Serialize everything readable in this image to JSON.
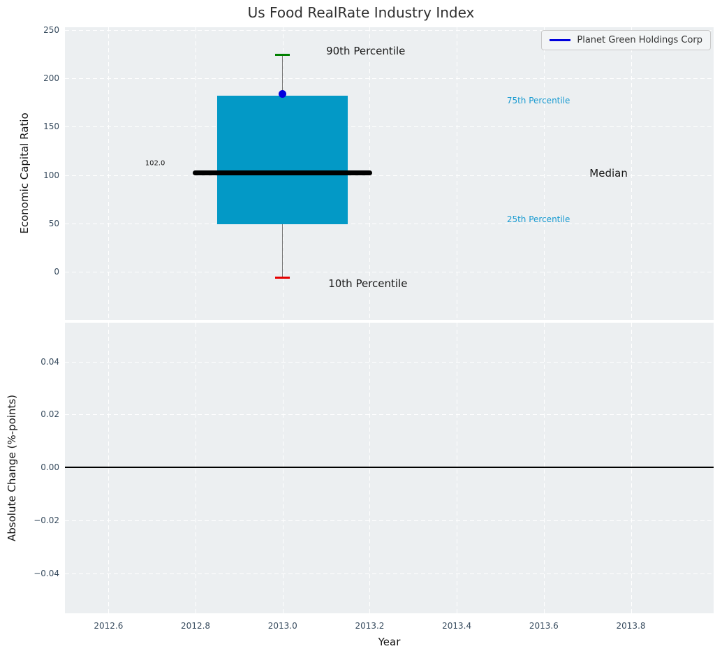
{
  "figure": {
    "plot_background": "#eceff1",
    "grid_color": "#ffffff",
    "tick_label_color": "#374b5e",
    "text_color": "#141414"
  },
  "x_axis": {
    "label": "Year",
    "xlim": [
      2012.5,
      2013.99
    ],
    "ticks": [
      {
        "v": 2012.6,
        "label": "2012.6"
      },
      {
        "v": 2012.8,
        "label": "2012.8"
      },
      {
        "v": 2013.0,
        "label": "2013.0"
      },
      {
        "v": 2013.2,
        "label": "2013.2"
      },
      {
        "v": 2013.4,
        "label": "2013.4"
      },
      {
        "v": 2013.6,
        "label": "2013.6"
      },
      {
        "v": 2013.8,
        "label": "2013.8"
      }
    ]
  },
  "chart_data": [
    {
      "type": "boxplot",
      "title": "Us Food RealRate Industry Index",
      "ylabel": "Economic Capital Ratio",
      "ylim": [
        -49.5,
        252.7
      ],
      "yticks": [
        {
          "v": 250,
          "label": "250"
        },
        {
          "v": 200,
          "label": "200"
        },
        {
          "v": 150,
          "label": "150"
        },
        {
          "v": 100,
          "label": "100"
        },
        {
          "v": 50,
          "label": "50"
        },
        {
          "v": 0,
          "label": "0"
        }
      ],
      "box": {
        "x": 2013.0,
        "p10": -6,
        "p25": 49,
        "median": 102.0,
        "p75": 182,
        "p90": 224,
        "box_half_width": 0.15,
        "median_half_width": 0.206,
        "cap_half_width": 0.017,
        "colors": {
          "box": "#0399c6",
          "median": "#000000",
          "whisker": "#777777",
          "cap_top": "#008000",
          "cap_bottom": "#e60000"
        }
      },
      "median_value_label": "102.0",
      "company_point": {
        "series": "Planet Green Holdings Corp",
        "x": 2013.0,
        "y": 184,
        "color": "#0000dd"
      },
      "annotations": [
        {
          "text": "90th Percentile",
          "x": 2013.1,
          "y": 228,
          "color": "#1a1a1a",
          "size": "large"
        },
        {
          "text": "10th Percentile",
          "x": 2013.105,
          "y": -12,
          "color": "#1a1a1a",
          "size": "large"
        },
        {
          "text": "75th Percentile",
          "x": 2013.515,
          "y": 177,
          "color": "#189ad1",
          "size": "small"
        },
        {
          "text": "25th Percentile",
          "x": 2013.515,
          "y": 54,
          "color": "#189ad1",
          "size": "small"
        },
        {
          "text": "Median",
          "x": 2013.705,
          "y": 102,
          "color": "#1a1a1a",
          "size": "large"
        },
        {
          "text": "102.0",
          "x": 2012.684,
          "y": 112,
          "color": "#1a1a1a",
          "size": "tiny"
        }
      ],
      "legend": {
        "position": "upper right",
        "entries": [
          {
            "label": "Planet Green Holdings Corp",
            "color": "#0000dd"
          }
        ]
      }
    },
    {
      "type": "line",
      "ylabel": "Absolute Change (%-points)",
      "ylim": [
        -0.0551,
        0.0547
      ],
      "yticks": [
        {
          "v": 0.04,
          "label": "0.04"
        },
        {
          "v": 0.02,
          "label": "0.02"
        },
        {
          "v": 0.0,
          "label": "0.00"
        },
        {
          "v": -0.02,
          "label": "−0.02"
        },
        {
          "v": -0.04,
          "label": "−0.04"
        }
      ],
      "zero_line": {
        "v": 0.0,
        "color": "#000000"
      },
      "series": []
    }
  ]
}
